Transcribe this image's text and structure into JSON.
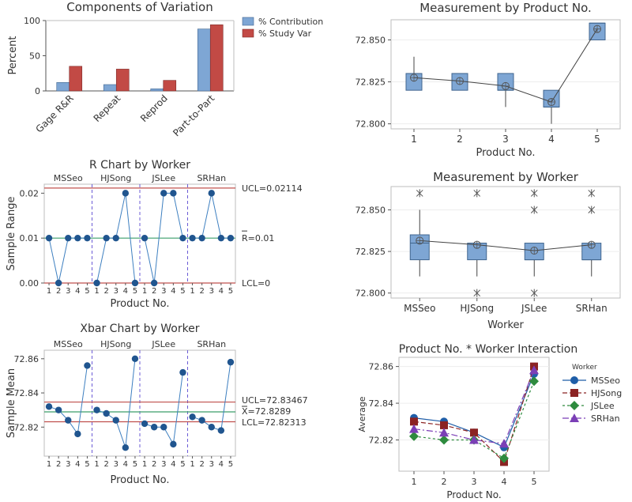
{
  "colors": {
    "blue": "#7ea6d4",
    "blue_edge": "#41668f",
    "red": "#c24a45",
    "red_edge": "#7e2c29",
    "point": "#20558f",
    "line": "#3d7fc0",
    "limit": "#c0504d",
    "center": "#3a9e6a",
    "sep": "#6b5bd6",
    "axis": "#555555",
    "grid": "#ededed"
  },
  "chart_data": [
    {
      "id": "components",
      "type": "bar",
      "title": "Components of Variation",
      "ylabel": "Percent",
      "ylim": [
        0,
        100
      ],
      "yticks": [
        0,
        50,
        100
      ],
      "categories": [
        "Gage R&R",
        "Repeat",
        "Reprod",
        "Part-to-Part"
      ],
      "series": [
        {
          "name": "% Contribution",
          "values": [
            12,
            9,
            3,
            88
          ]
        },
        {
          "name": "% Study Var",
          "values": [
            35,
            31,
            15,
            94
          ]
        }
      ],
      "legend": "top-right"
    },
    {
      "id": "r_chart",
      "type": "line",
      "title": "R Chart by Worker",
      "xlabel": "Product No.",
      "ylabel": "Sample Range",
      "ylim": [
        0,
        0.022
      ],
      "yticks": [
        "0.00",
        "0.01",
        "0.02"
      ],
      "groups": [
        "MSSeo",
        "HJSong",
        "JSLee",
        "SRHan"
      ],
      "xtick_labels": [
        "1",
        "2",
        "3",
        "4",
        "5"
      ],
      "values": [
        0.01,
        0,
        0.01,
        0.01,
        0.01,
        0,
        0.01,
        0.01,
        0.02,
        0,
        0.01,
        0,
        0.02,
        0.02,
        0.01,
        0.01,
        0.01,
        0.02,
        0.01,
        0.01
      ],
      "limits": {
        "ucl": 0.02114,
        "center": 0.01,
        "lcl": 0
      },
      "limit_labels": {
        "ucl": "UCL=0.02114",
        "center": "R=0.01",
        "lcl": "LCL=0"
      }
    },
    {
      "id": "xbar_chart",
      "type": "line",
      "title": "Xbar Chart by Worker",
      "xlabel": "Product No.",
      "ylabel": "Sample Mean",
      "ylim": [
        72.803,
        72.865
      ],
      "yticks": [
        "72.82",
        "72.84",
        "72.86"
      ],
      "groups": [
        "MSSeo",
        "HJSong",
        "JSLee",
        "SRHan"
      ],
      "xtick_labels": [
        "1",
        "2",
        "3",
        "4",
        "5"
      ],
      "values": [
        72.832,
        72.83,
        72.824,
        72.816,
        72.856,
        72.83,
        72.828,
        72.824,
        72.808,
        72.86,
        72.822,
        72.82,
        72.82,
        72.81,
        72.852,
        72.826,
        72.824,
        72.82,
        72.818,
        72.858
      ],
      "limits": {
        "ucl": 72.83467,
        "center": 72.8289,
        "lcl": 72.82313
      },
      "limit_labels": {
        "ucl": "UCL=72.83467",
        "center": "X=72.8289",
        "lcl": "LCL=72.82313"
      }
    },
    {
      "id": "by_product",
      "type": "box",
      "title": "Measurement by Product No.",
      "xlabel": "Product No.",
      "ylim": [
        72.797,
        72.862
      ],
      "yticks": [
        "72.800",
        "72.825",
        "72.850"
      ],
      "categories": [
        "1",
        "2",
        "3",
        "4",
        "5"
      ],
      "boxes": [
        {
          "q1": 72.82,
          "q3": 72.83,
          "median": 72.83,
          "low": 72.82,
          "high": 72.84,
          "mean": 72.8275
        },
        {
          "q1": 72.82,
          "q3": 72.83,
          "median": 72.83,
          "low": 72.82,
          "high": 72.83,
          "mean": 72.8255
        },
        {
          "q1": 72.82,
          "q3": 72.83,
          "median": 72.82,
          "low": 72.81,
          "high": 72.83,
          "mean": 72.8225
        },
        {
          "q1": 72.81,
          "q3": 72.82,
          "median": 72.81,
          "low": 72.8,
          "high": 72.82,
          "mean": 72.813
        },
        {
          "q1": 72.85,
          "q3": 72.86,
          "median": 72.86,
          "low": 72.85,
          "high": 72.86,
          "mean": 72.8565
        }
      ]
    },
    {
      "id": "by_worker",
      "type": "box",
      "title": "Measurement by Worker",
      "xlabel": "Worker",
      "ylim": [
        72.797,
        72.864
      ],
      "yticks": [
        "72.800",
        "72.825",
        "72.850"
      ],
      "categories": [
        "MSSeo",
        "HJSong",
        "JSLee",
        "SRHan"
      ],
      "boxes": [
        {
          "q1": 72.82,
          "q3": 72.835,
          "median": 72.83,
          "low": 72.81,
          "high": 72.85,
          "mean": 72.8315,
          "outliers": [
            72.86
          ]
        },
        {
          "q1": 72.82,
          "q3": 72.83,
          "median": 72.83,
          "low": 72.81,
          "high": 72.83,
          "mean": 72.829,
          "outliers": [
            72.86,
            72.8
          ]
        },
        {
          "q1": 72.82,
          "q3": 72.83,
          "median": 72.82,
          "low": 72.81,
          "high": 72.83,
          "mean": 72.8255,
          "outliers": [
            72.86,
            72.85,
            72.8
          ]
        },
        {
          "q1": 72.82,
          "q3": 72.83,
          "median": 72.82,
          "low": 72.81,
          "high": 72.83,
          "mean": 72.829,
          "outliers": [
            72.86,
            72.85
          ]
        }
      ]
    },
    {
      "id": "interaction",
      "type": "line",
      "title": "Product No. * Worker Interaction",
      "xlabel": "Product No.",
      "ylabel": "Average",
      "ylim": [
        72.803,
        72.865
      ],
      "yticks": [
        "72.82",
        "72.84",
        "72.86"
      ],
      "categories": [
        "1",
        "2",
        "3",
        "4",
        "5"
      ],
      "legend_title": "Worker",
      "legend": "right",
      "series": [
        {
          "name": "MSSeo",
          "values": [
            72.832,
            72.83,
            72.824,
            72.816,
            72.856
          ],
          "color": "#1f5ea8",
          "marker": "circle",
          "dash": ""
        },
        {
          "name": "HJSong",
          "values": [
            72.83,
            72.828,
            72.824,
            72.808,
            72.86
          ],
          "color": "#8b2323",
          "marker": "square",
          "dash": "6,3"
        },
        {
          "name": "JSLee",
          "values": [
            72.822,
            72.82,
            72.82,
            72.81,
            72.852
          ],
          "color": "#2e8b3e",
          "marker": "diamond",
          "dash": "3,3"
        },
        {
          "name": "SRHan",
          "values": [
            72.826,
            72.824,
            72.82,
            72.818,
            72.858
          ],
          "color": "#7b3fb6",
          "marker": "triangle",
          "dash": "8,3,2,3"
        }
      ]
    }
  ]
}
